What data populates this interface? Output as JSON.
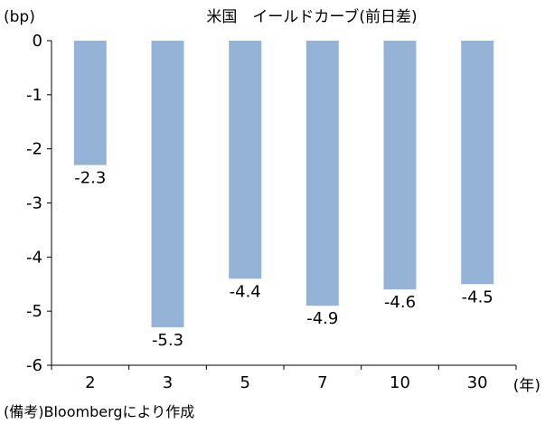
{
  "chart_data": {
    "type": "bar",
    "title": "米国　イールドカーブ(前日差)",
    "ylabel": "(bp)",
    "xlabel": "(年)",
    "categories": [
      "2",
      "3",
      "5",
      "7",
      "10",
      "30"
    ],
    "values": [
      -2.3,
      -5.3,
      -4.4,
      -4.9,
      -4.6,
      -4.5
    ],
    "value_labels": [
      "-2.3",
      "-5.3",
      "-4.4",
      "-4.9",
      "-4.6",
      "-4.5"
    ],
    "ylim": [
      -6,
      0
    ],
    "yticks": [
      "0",
      "-1",
      "-2",
      "-3",
      "-4",
      "-5",
      "-6"
    ],
    "bar_color": "#95B3D7",
    "grid": false,
    "legend": "none"
  },
  "footnote": "(備考)Bloombergにより作成"
}
